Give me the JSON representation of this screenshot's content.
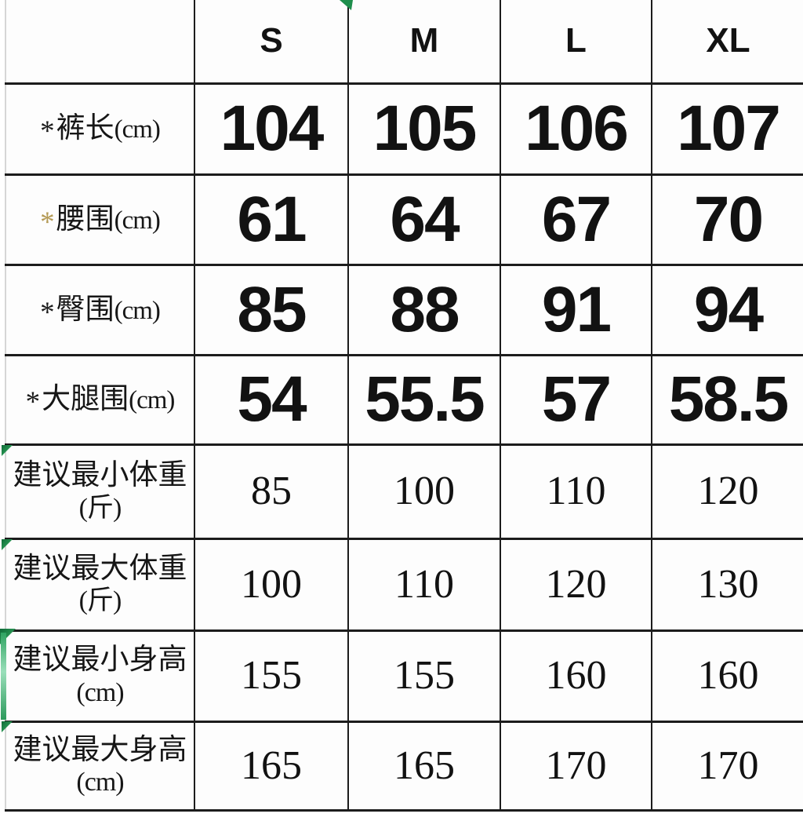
{
  "colors": {
    "border_dark": "#1c1c1c",
    "border_light": "#d6d6d6",
    "green_mark": "#1e8e4c",
    "green_mark_light": "#9adfba",
    "gold_asterisk": "#b49a55",
    "text": "#121212"
  },
  "size_chart": {
    "columns": [
      "S",
      "M",
      "L",
      "XL"
    ],
    "corner_header": "",
    "rows": [
      {
        "id": "pants-length",
        "asterisk": "*",
        "asterisk_color": "#1a1a1a",
        "name": "裤长",
        "unit": "(cm)",
        "layout": "inline",
        "value_style": "big",
        "values": [
          "104",
          "105",
          "106",
          "107"
        ]
      },
      {
        "id": "waist",
        "asterisk": "*",
        "asterisk_color": "#b49a55",
        "name": "腰围",
        "unit": "(cm)",
        "layout": "inline",
        "value_style": "big",
        "values": [
          "61",
          "64",
          "67",
          "70"
        ]
      },
      {
        "id": "hip",
        "asterisk": "*",
        "asterisk_color": "#1a1a1a",
        "name": "臀围",
        "unit": "(cm)",
        "layout": "inline",
        "value_style": "big",
        "values": [
          "85",
          "88",
          "91",
          "94"
        ]
      },
      {
        "id": "thigh",
        "asterisk": "*",
        "asterisk_color": "#1a1a1a",
        "name": "大腿围",
        "unit": "(cm)",
        "layout": "inline",
        "value_style": "big",
        "values": [
          "54",
          "55.5",
          "57",
          "58.5"
        ]
      },
      {
        "id": "min-weight",
        "asterisk": "",
        "asterisk_color": "",
        "name": "建议最小体重",
        "unit": "(斤)",
        "layout": "stacked",
        "value_style": "serif",
        "values": [
          "85",
          "100",
          "110",
          "120"
        ]
      },
      {
        "id": "max-weight",
        "asterisk": "",
        "asterisk_color": "",
        "name": "建议最大体重",
        "unit": "(斤)",
        "layout": "stacked",
        "value_style": "serif",
        "values": [
          "100",
          "110",
          "120",
          "130"
        ]
      },
      {
        "id": "min-height",
        "asterisk": "",
        "asterisk_color": "",
        "name": "建议最小身高",
        "unit": "(cm)",
        "layout": "stacked",
        "value_style": "serif",
        "values": [
          "155",
          "155",
          "160",
          "160"
        ]
      },
      {
        "id": "max-height",
        "asterisk": "",
        "asterisk_color": "",
        "name": "建议最大身高",
        "unit": "(cm)",
        "layout": "stacked",
        "value_style": "serif",
        "values": [
          "165",
          "165",
          "170",
          "170"
        ]
      }
    ]
  }
}
